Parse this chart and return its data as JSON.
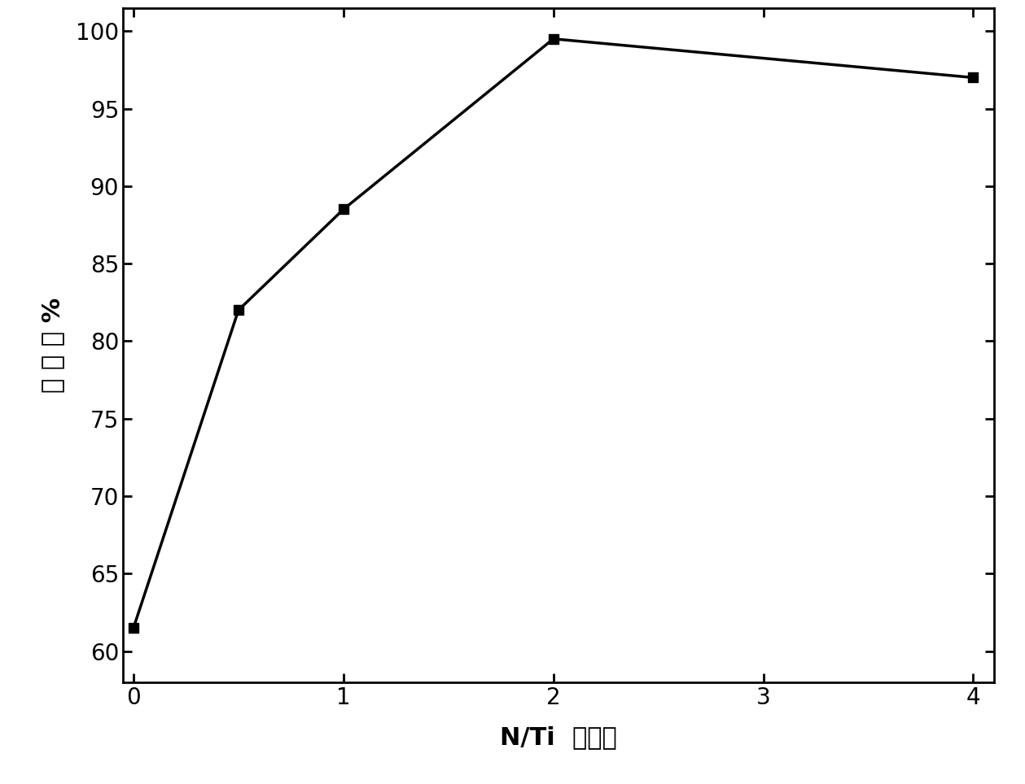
{
  "x": [
    0,
    0.5,
    1,
    2,
    4
  ],
  "y": [
    61.5,
    82.0,
    88.5,
    99.5,
    97.0
  ],
  "xlabel": "N/Ti  摩尔比",
  "ylabel": "降 解 率 %",
  "xlim": [
    -0.05,
    4.1
  ],
  "ylim": [
    58,
    101.5
  ],
  "xticks": [
    0,
    1,
    2,
    3,
    4
  ],
  "yticks": [
    60,
    65,
    70,
    75,
    80,
    85,
    90,
    95,
    100
  ],
  "line_color": "#000000",
  "marker": "s",
  "marker_size": 8,
  "line_width": 2.5,
  "background_color": "#ffffff",
  "xlabel_fontsize": 22,
  "ylabel_fontsize": 22,
  "tick_fontsize": 20
}
